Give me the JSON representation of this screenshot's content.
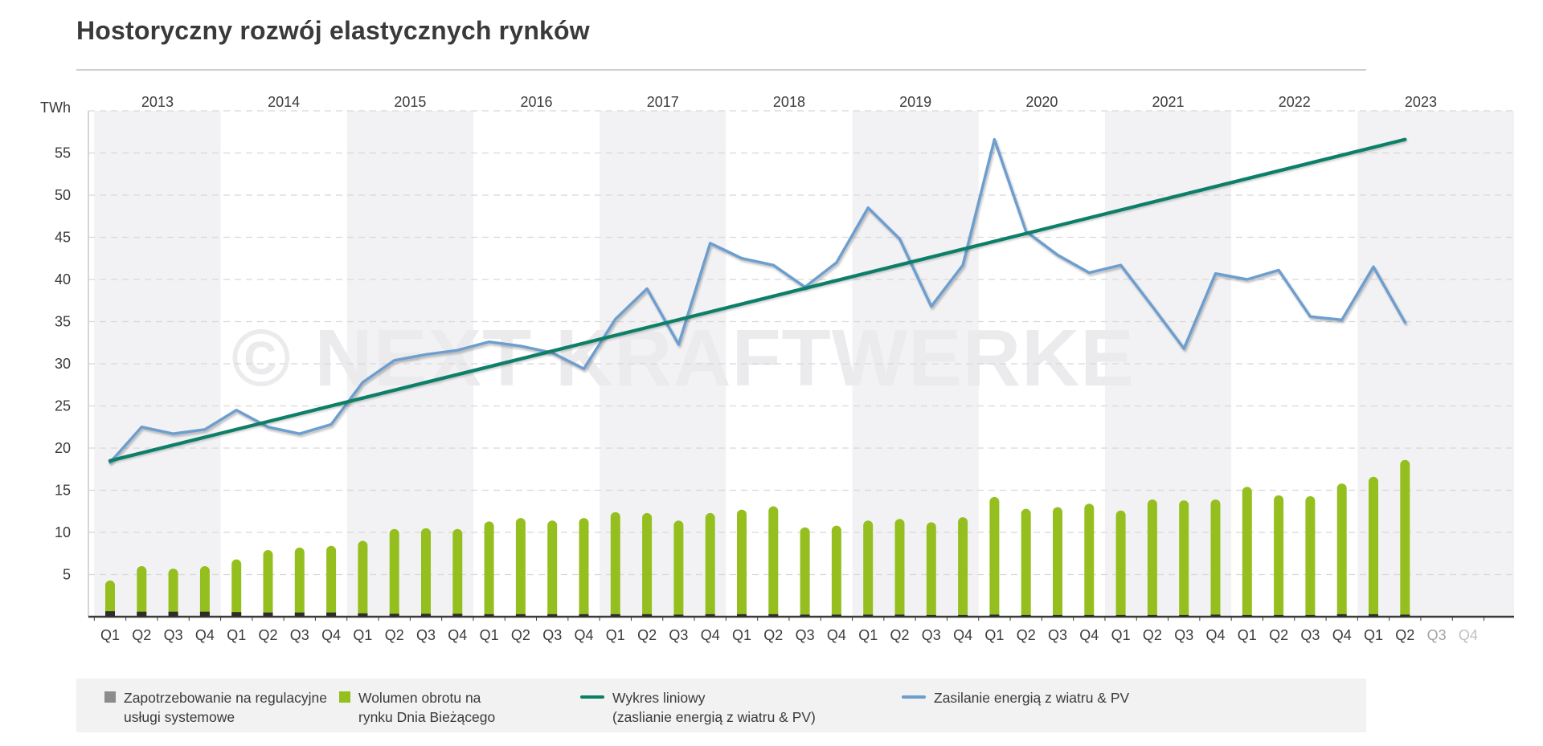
{
  "title": "Hostoryczny rozwój elastycznych rynków",
  "watermark": "© NEXT KRAFTWERKE",
  "y_axis": {
    "unit": "TWh"
  },
  "colors": {
    "band": "#f2f2f4",
    "gridline": "#d8d8da",
    "axis": "#3a3a39",
    "text": "#3b3b3b",
    "watermark": "#ebebed",
    "legend_bg": "#f2f2f2",
    "future_label_q3": "#a2a2a2",
    "future_label_q4": "#c0c0c0",
    "regulation_bar": "#2d2d2c",
    "intraday_bar": "#95bf1f",
    "trend_line": "#0a7f67",
    "wind_pv_line": "#6d9ece"
  },
  "chart_data": {
    "type": "combo",
    "title": "Hostoryczny rozwój elastycznych rynków",
    "ylabel": "TWh",
    "ylim": [
      0,
      60
    ],
    "yticks": [
      5,
      10,
      15,
      20,
      25,
      30,
      35,
      40,
      45,
      50,
      55
    ],
    "grid": "dashed-horizontal",
    "legend_position": "bottom",
    "years": [
      "2013",
      "2014",
      "2015",
      "2016",
      "2017",
      "2018",
      "2019",
      "2020",
      "2021",
      "2022",
      "2023"
    ],
    "x_labels": [
      "Q1",
      "Q2",
      "Q3",
      "Q4",
      "Q1",
      "Q2",
      "Q3",
      "Q4",
      "Q1",
      "Q2",
      "Q3",
      "Q4",
      "Q1",
      "Q2",
      "Q3",
      "Q4",
      "Q1",
      "Q2",
      "Q3",
      "Q4",
      "Q1",
      "Q2",
      "Q3",
      "Q4",
      "Q1",
      "Q2",
      "Q3",
      "Q4",
      "Q1",
      "Q2",
      "Q3",
      "Q4",
      "Q1",
      "Q2",
      "Q3",
      "Q4",
      "Q1",
      "Q2",
      "Q3",
      "Q4",
      "Q1",
      "Q2",
      "Q3",
      "Q4"
    ],
    "future_x_labels": [
      "Q3 2023",
      "Q4 2023"
    ],
    "series": [
      {
        "name": "Zapotrzebowanie na regulacyjne usługi systemowe",
        "type": "bar",
        "color": "#2d2d2c",
        "legend_color": "#8c8c8c",
        "values": [
          0.65,
          0.6,
          0.6,
          0.6,
          0.55,
          0.5,
          0.5,
          0.5,
          0.4,
          0.35,
          0.35,
          0.35,
          0.3,
          0.3,
          0.3,
          0.3,
          0.3,
          0.3,
          0.25,
          0.3,
          0.3,
          0.3,
          0.25,
          0.25,
          0.25,
          0.25,
          0.2,
          0.2,
          0.25,
          0.2,
          0.2,
          0.2,
          0.2,
          0.2,
          0.2,
          0.25,
          0.2,
          0.2,
          0.2,
          0.3,
          0.3,
          0.25
        ]
      },
      {
        "name": "Wolumen obrotu na rynku Dnia Bieżącego",
        "type": "bar",
        "color": "#95bf1f",
        "values": [
          4.3,
          6.0,
          5.7,
          6.0,
          6.8,
          7.9,
          8.2,
          8.4,
          9.0,
          10.4,
          10.5,
          10.4,
          11.3,
          11.7,
          11.4,
          11.7,
          12.4,
          12.3,
          11.4,
          12.3,
          12.7,
          13.1,
          10.6,
          10.8,
          11.4,
          11.6,
          11.2,
          11.8,
          14.2,
          12.8,
          13.0,
          13.4,
          12.6,
          13.9,
          13.8,
          13.9,
          15.4,
          14.4,
          14.3,
          15.8,
          16.6,
          18.6
        ]
      },
      {
        "name": "Wykres liniowy (zaslianie energią z wiatru & PV)",
        "type": "trend-line",
        "color": "#0a7f67",
        "start": 18.5,
        "end": 56.6
      },
      {
        "name": "Zasilanie energią z wiatru & PV",
        "type": "line",
        "color": "#6d9ece",
        "values": [
          18.3,
          22.5,
          21.7,
          22.2,
          24.5,
          22.5,
          21.7,
          22.8,
          27.8,
          30.4,
          31.1,
          31.6,
          32.6,
          32.1,
          31.3,
          29.4,
          35.3,
          38.9,
          32.3,
          44.3,
          42.5,
          41.7,
          39.1,
          42.0,
          48.5,
          44.8,
          36.8,
          41.7,
          56.6,
          45.7,
          42.9,
          40.8,
          41.7,
          36.8,
          31.8,
          40.7,
          40.0,
          41.1,
          35.6,
          35.2,
          41.5,
          34.9
        ]
      }
    ]
  },
  "legend": {
    "items": [
      {
        "line1": "Zapotrzebowanie na regulacyjne",
        "line2": "usługi systemowe",
        "marker": "square",
        "color": "#8c8c8c"
      },
      {
        "line1": "Wolumen obrotu na",
        "line2": "rynku Dnia Bieżącego",
        "marker": "square",
        "color": "#95bf1f"
      },
      {
        "line1": "Wykres liniowy",
        "line2": "(zaslianie energią z wiatru & PV)",
        "marker": "line",
        "color": "#0a7f67"
      },
      {
        "line1": "Zasilanie energią z wiatru & PV",
        "line2": "",
        "marker": "line",
        "color": "#6d9ece"
      }
    ]
  }
}
